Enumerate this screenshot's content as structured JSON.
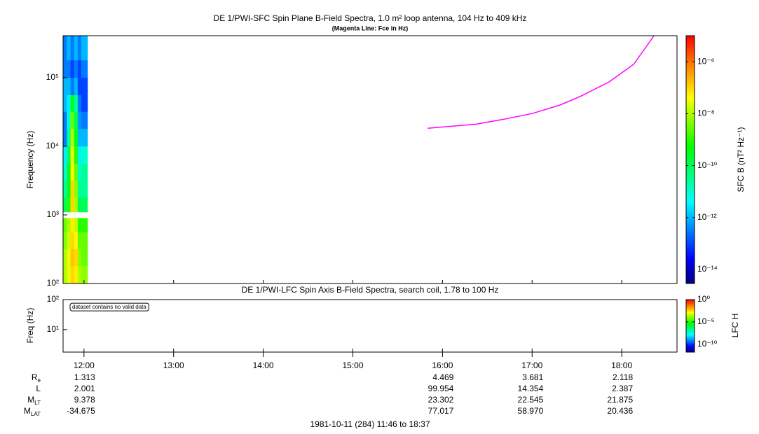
{
  "chart_data": [
    {
      "type": "spectrogram",
      "title": "DE 1/PWI-SFC  Spin Plane B-Field Spectra, 1.0 m² loop antenna, 104 Hz to 409 kHz",
      "subtitle": "(Magenta Line: Fce in Hz)",
      "y_label": "Frequency (Hz)",
      "yscale": "log",
      "ylim": [
        100,
        409000
      ],
      "yticks": [
        {
          "value": 100,
          "label": "10²"
        },
        {
          "value": 1000,
          "label": "10³"
        },
        {
          "value": 10000,
          "label": "10⁴"
        },
        {
          "value": 100000,
          "label": "10⁵"
        }
      ],
      "xlim": [
        11.7667,
        18.6167
      ],
      "time_edges": [
        11.7667,
        11.81,
        11.85,
        11.89,
        11.93,
        11.97,
        12.04
      ],
      "freq_edges": [
        100,
        180,
        320,
        560,
        900,
        1100,
        1800,
        3200,
        5600,
        10000,
        18000,
        32000,
        56000,
        100000,
        180000,
        409000
      ],
      "z": [
        [
          1e-08,
          1e-08,
          5e-09,
          3e-09,
          null,
          1e-10,
          3e-11,
          1e-11,
          3e-12,
          3e-13,
          3e-13,
          1e-12,
          1e-12,
          3e-13,
          3e-13
        ],
        [
          3e-08,
          3e-08,
          1.6e-08,
          1e-08,
          null,
          1e-09,
          3e-10,
          3e-10,
          1e-10,
          3e-11,
          1e-11,
          3e-12,
          1e-12,
          3e-13,
          1e-12
        ],
        [
          1e-07,
          1.6e-07,
          1e-07,
          6e-08,
          null,
          1e-07,
          1e-07,
          5e-08,
          3e-08,
          1e-08,
          3e-09,
          3e-10,
          3e-13,
          1e-13,
          3e-13
        ],
        [
          6e-08,
          1e-07,
          5e-08,
          1.6e-08,
          null,
          1e-08,
          6e-09,
          3e-09,
          1e-09,
          3e-10,
          1e-10,
          3e-11,
          1e-12,
          3e-13,
          1e-12
        ],
        [
          1e-08,
          6e-09,
          3e-09,
          1e-09,
          null,
          1e-10,
          3e-11,
          1e-11,
          3e-12,
          1e-12,
          5e-13,
          3e-13,
          1e-13,
          1e-13,
          3e-13
        ],
        [
          6e-09,
          3e-09,
          3e-09,
          1e-09,
          null,
          1e-10,
          3e-11,
          3e-11,
          1e-11,
          1e-12,
          3e-13,
          1e-13,
          1e-13,
          3e-13,
          1e-12
        ]
      ],
      "zlim": [
        2.9e-15,
        1e-05
      ],
      "zticks": [
        {
          "value": 1e-06,
          "label": "10⁻⁶"
        },
        {
          "value": 1e-08,
          "label": "10⁻⁸"
        },
        {
          "value": 1e-10,
          "label": "10⁻¹⁰"
        },
        {
          "value": 1e-12,
          "label": "10⁻¹²"
        },
        {
          "value": 1e-14,
          "label": "10⁻¹⁴"
        }
      ],
      "colorbar_label": "SFC B (nT² Hz⁻¹)",
      "line": {
        "color": "#ff00ff",
        "x": [
          15.836,
          16.375,
          16.6875,
          17.0,
          17.3125,
          17.547,
          17.859,
          18.133,
          18.36
        ],
        "values": [
          18300,
          21000,
          24800,
          30000,
          40000,
          54000,
          86700,
          156000,
          409000
        ]
      }
    },
    {
      "type": "spectrogram",
      "title": "DE 1/PWI-LFC  Spin Axis B-Field Spectra, search coil, 1.78 to 100 Hz",
      "y_label": "Freq (Hz)",
      "yscale": "log",
      "ylim": [
        1.78,
        100
      ],
      "yticks": [
        {
          "value": 10,
          "label": "10¹"
        },
        {
          "value": 100,
          "label": "10²"
        }
      ],
      "xlim": [
        11.7667,
        18.6167
      ],
      "xticks": [
        {
          "value": 12,
          "label": "12:00"
        },
        {
          "value": 13,
          "label": "13:00"
        },
        {
          "value": 14,
          "label": "14:00"
        },
        {
          "value": 15,
          "label": "15:00"
        },
        {
          "value": 16,
          "label": "16:00"
        },
        {
          "value": 17,
          "label": "17:00"
        },
        {
          "value": 18,
          "label": "18:00"
        }
      ],
      "annotation": "dataset contains no valid data",
      "zlim": [
        1.6e-12,
        1
      ],
      "zticks": [
        {
          "value": 1,
          "label": "10⁰"
        },
        {
          "value": 1e-05,
          "label": "10⁻⁵"
        },
        {
          "value": 1e-10,
          "label": "10⁻¹⁰"
        }
      ],
      "colorbar_label": "LFC H"
    }
  ],
  "ephemeris": [
    {
      "label": "R",
      "sub": "e",
      "values": [
        "1.313",
        null,
        null,
        null,
        "4.469",
        "3.681",
        "2.118"
      ]
    },
    {
      "label": "L",
      "values": [
        "2.001",
        null,
        null,
        null,
        "99.954",
        "14.354",
        "2.387"
      ]
    },
    {
      "label": "M",
      "sub": "LT",
      "values": [
        "9.378",
        null,
        null,
        null,
        "23.302",
        "22.545",
        "21.875"
      ]
    },
    {
      "label": "M",
      "sub": "LAT",
      "values": [
        "-34.675",
        null,
        null,
        null,
        "77.017",
        "58.970",
        "20.436"
      ]
    }
  ],
  "footer": "1981-10-11 (284) 11:46 to 18:37"
}
